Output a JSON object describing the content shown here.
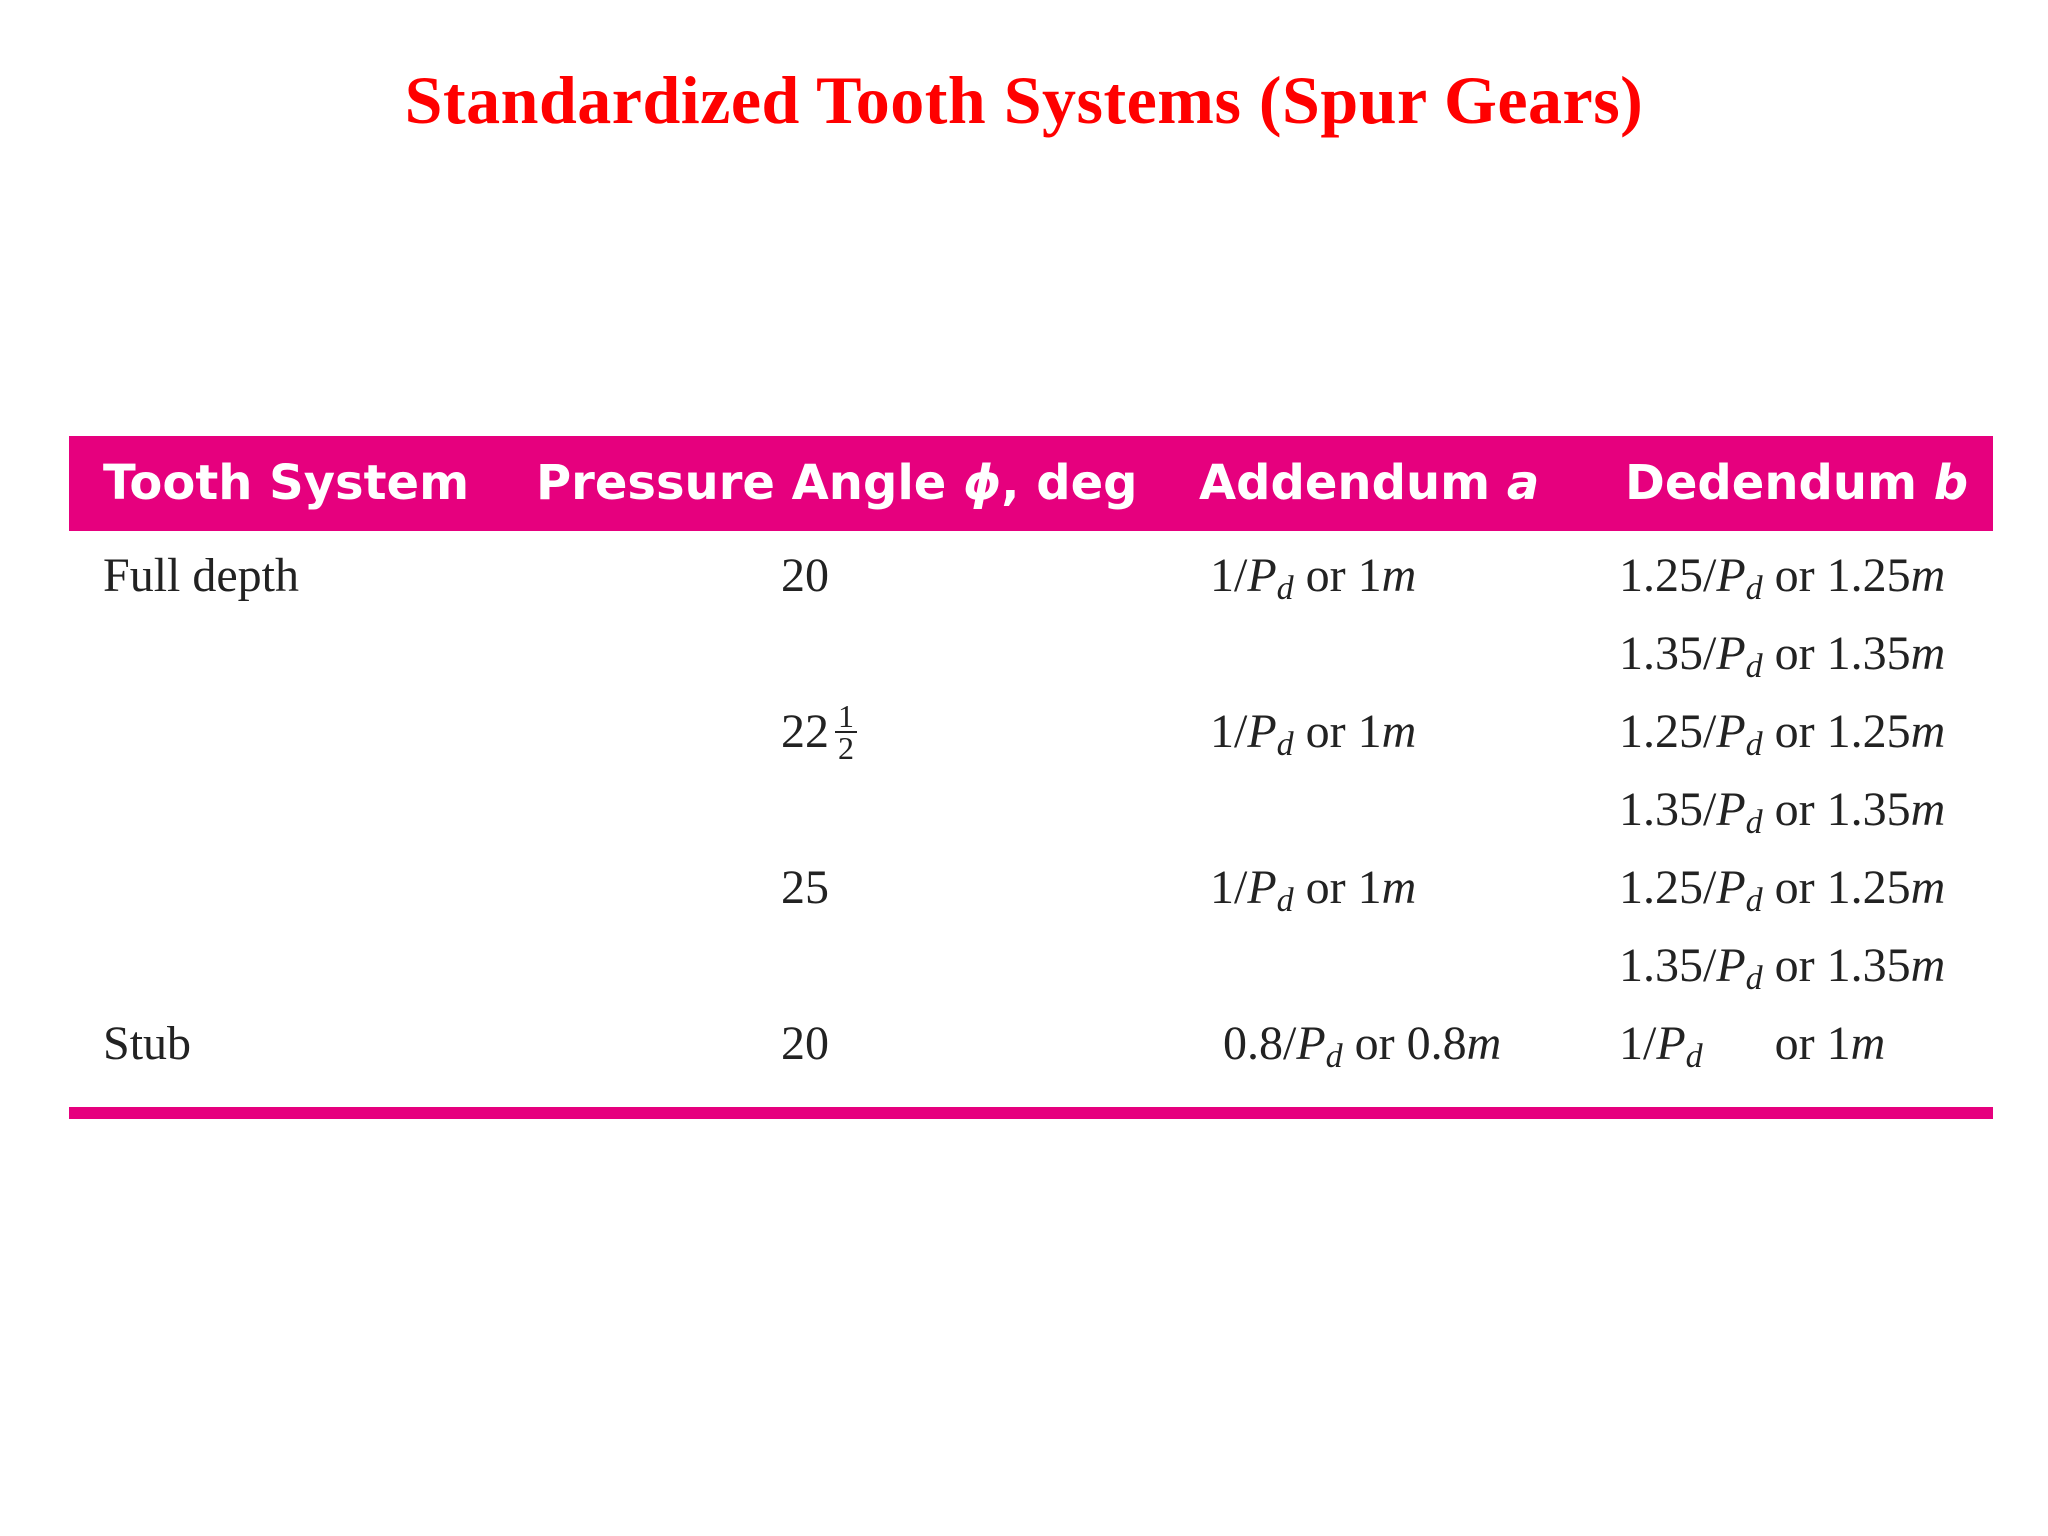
{
  "title": "Standardized Tooth Systems (Spur Gears)",
  "colors": {
    "title": "#ff0000",
    "header_bg": "#e6007e",
    "header_text": "#ffffff",
    "body_text": "#222222"
  },
  "table": {
    "headers": {
      "tooth_system": "Tooth System",
      "pressure_angle_prefix": "Pressure Angle ",
      "pressure_angle_symbol": "ϕ",
      "pressure_angle_suffix": ", deg",
      "addendum_prefix": "Addendum ",
      "addendum_symbol": "a",
      "dedendum_prefix": "Dedendum ",
      "dedendum_symbol": "b"
    },
    "rows": [
      {
        "system": "Full depth",
        "angle": "20",
        "addendum": {
          "num": "1/",
          "P": "P",
          "d": "d",
          "mid": " or 1",
          "m": "m"
        },
        "dedendum": {
          "num": "1.25/",
          "P": "P",
          "d": "d",
          "mid": " or 1.25",
          "m": "m"
        }
      },
      {
        "system": "",
        "angle": "",
        "addendum": null,
        "dedendum": {
          "num": "1.35/",
          "P": "P",
          "d": "d",
          "mid": " or 1.35",
          "m": "m"
        }
      },
      {
        "system": "",
        "angle": "22",
        "angle_frac": {
          "num": "1",
          "den": "2"
        },
        "addendum": {
          "num": "1/",
          "P": "P",
          "d": "d",
          "mid": " or 1",
          "m": "m"
        },
        "dedendum": {
          "num": "1.25/",
          "P": "P",
          "d": "d",
          "mid": " or 1.25",
          "m": "m"
        }
      },
      {
        "system": "",
        "angle": "",
        "addendum": null,
        "dedendum": {
          "num": "1.35/",
          "P": "P",
          "d": "d",
          "mid": " or 1.35",
          "m": "m"
        }
      },
      {
        "system": "",
        "angle": "25",
        "addendum": {
          "num": "1/",
          "P": "P",
          "d": "d",
          "mid": " or 1",
          "m": "m"
        },
        "dedendum": {
          "num": "1.25/",
          "P": "P",
          "d": "d",
          "mid": " or 1.25",
          "m": "m"
        }
      },
      {
        "system": "",
        "angle": "",
        "addendum": null,
        "dedendum": {
          "num": "1.35/",
          "P": "P",
          "d": "d",
          "mid": " or 1.35",
          "m": "m"
        }
      },
      {
        "system": "Stub",
        "angle": "20",
        "addendum": {
          "num": "0.8/",
          "P": "P",
          "d": "d",
          "mid": " or 0.8",
          "m": "m"
        },
        "dedendum": {
          "num": "1/",
          "P": "P",
          "d": "d",
          "mid": "      or 1",
          "m": "m"
        }
      }
    ]
  }
}
